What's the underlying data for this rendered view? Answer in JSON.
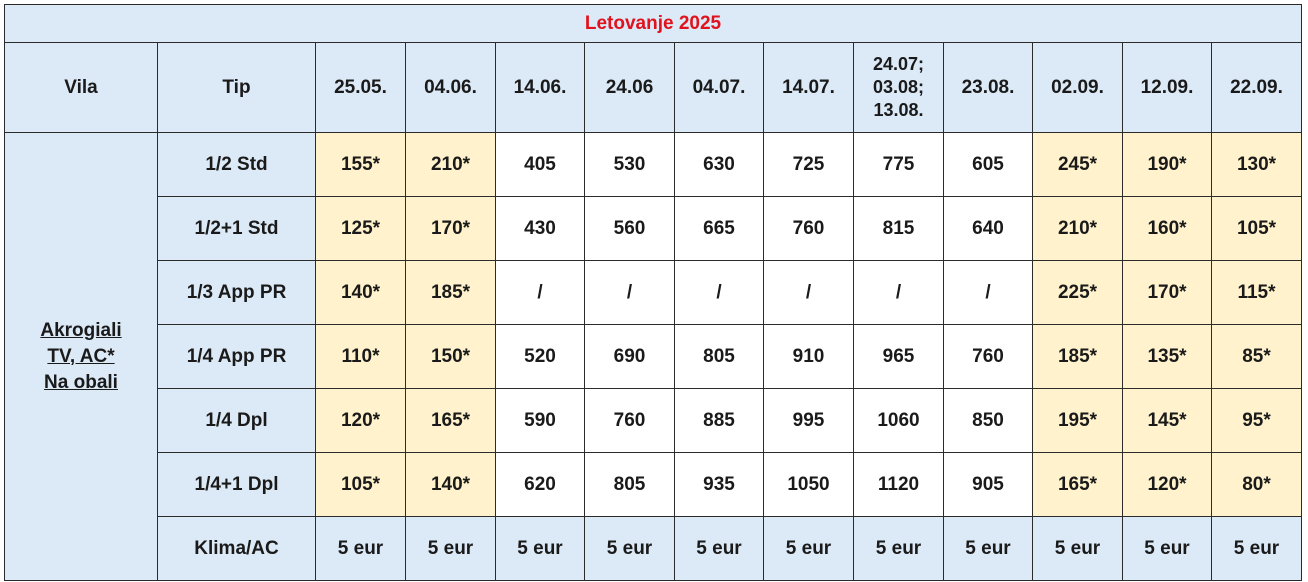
{
  "title": "Letovanje 2025",
  "header": {
    "vila": "Vila",
    "tip": "Tip",
    "dates": [
      "25.05.",
      "04.06.",
      "14.06.",
      "24.06",
      "04.07.",
      "14.07.",
      "24.07; 03.08; 13.08.",
      "23.08.",
      "02.09.",
      "12.09.",
      "22.09."
    ],
    "date_multi_lines": [
      "24.07;",
      "03.08;",
      "13.08."
    ]
  },
  "vila": {
    "lines": [
      "Akrogiali",
      "TV, AC*",
      "Na obali"
    ]
  },
  "rows": [
    {
      "tip": "1/2 Std",
      "values": [
        "155*",
        "210*",
        "405",
        "530",
        "630",
        "725",
        "775",
        "605",
        "245*",
        "190*",
        "130*"
      ]
    },
    {
      "tip": "1/2+1 Std",
      "values": [
        "125*",
        "170*",
        "430",
        "560",
        "665",
        "760",
        "815",
        "640",
        "210*",
        "160*",
        "105*"
      ]
    },
    {
      "tip": "1/3 App PR",
      "values": [
        "140*",
        "185*",
        "/",
        "/",
        "/",
        "/",
        "/",
        "/",
        "225*",
        "170*",
        "115*"
      ]
    },
    {
      "tip": "1/4 App PR",
      "values": [
        "110*",
        "150*",
        "520",
        "690",
        "805",
        "910",
        "965",
        "760",
        "185*",
        "135*",
        "85*"
      ]
    },
    {
      "tip": "1/4  Dpl",
      "values": [
        "120*",
        "165*",
        "590",
        "760",
        "885",
        "995",
        "1060",
        "850",
        "195*",
        "145*",
        "95*"
      ]
    },
    {
      "tip": "1/4+1 Dpl",
      "values": [
        "105*",
        "140*",
        "620",
        "805",
        "935",
        "1050",
        "1120",
        "905",
        "165*",
        "120*",
        "80*"
      ]
    }
  ],
  "klima": {
    "label": "Klima/AC",
    "values": [
      "5 eur",
      "5 eur",
      "5 eur",
      "5 eur",
      "5 eur",
      "5 eur",
      "5 eur",
      "5 eur",
      "5 eur",
      "5 eur",
      "5 eur"
    ]
  },
  "colors": {
    "header_bg": "#dce9f6",
    "price_bg": "#fff2cc",
    "title_text": "#e0121d"
  }
}
